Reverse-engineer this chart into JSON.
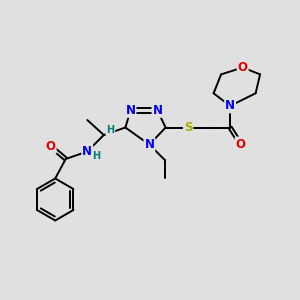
{
  "bg_color": "#e0e0e0",
  "atom_colors": {
    "C": "#000000",
    "N": "#0000EE",
    "O": "#DD0000",
    "S": "#AAAA00",
    "H": "#008080"
  },
  "bond_color": "#000000",
  "bond_width": 1.4,
  "font_size_atom": 8.5,
  "font_size_small": 7.0
}
